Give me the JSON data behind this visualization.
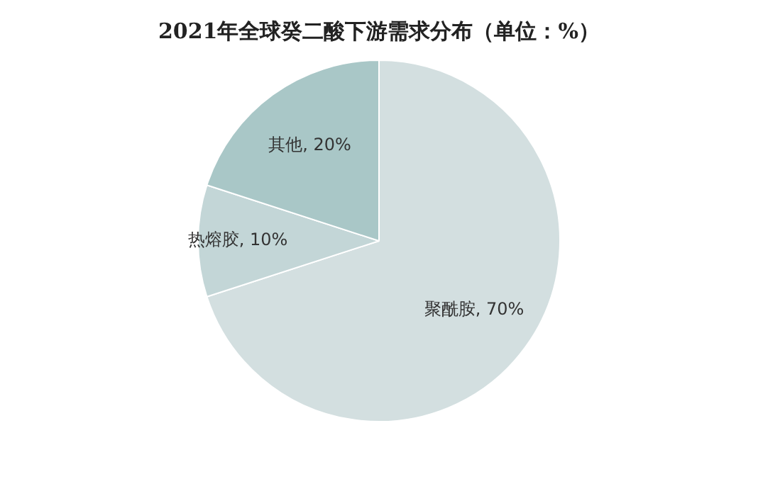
{
  "chart_data": {
    "type": "pie",
    "title": "2021年全球癸二酸下游需求分布（单位：%）",
    "categories": [
      "聚酰胺",
      "热熔胶",
      "其他"
    ],
    "values": [
      70,
      10,
      20
    ],
    "colors": [
      "#d3dfe0",
      "#c3d6d7",
      "#a9c7c7"
    ],
    "value_labels": [
      "70%",
      "10%",
      "20%"
    ],
    "legend": false
  }
}
